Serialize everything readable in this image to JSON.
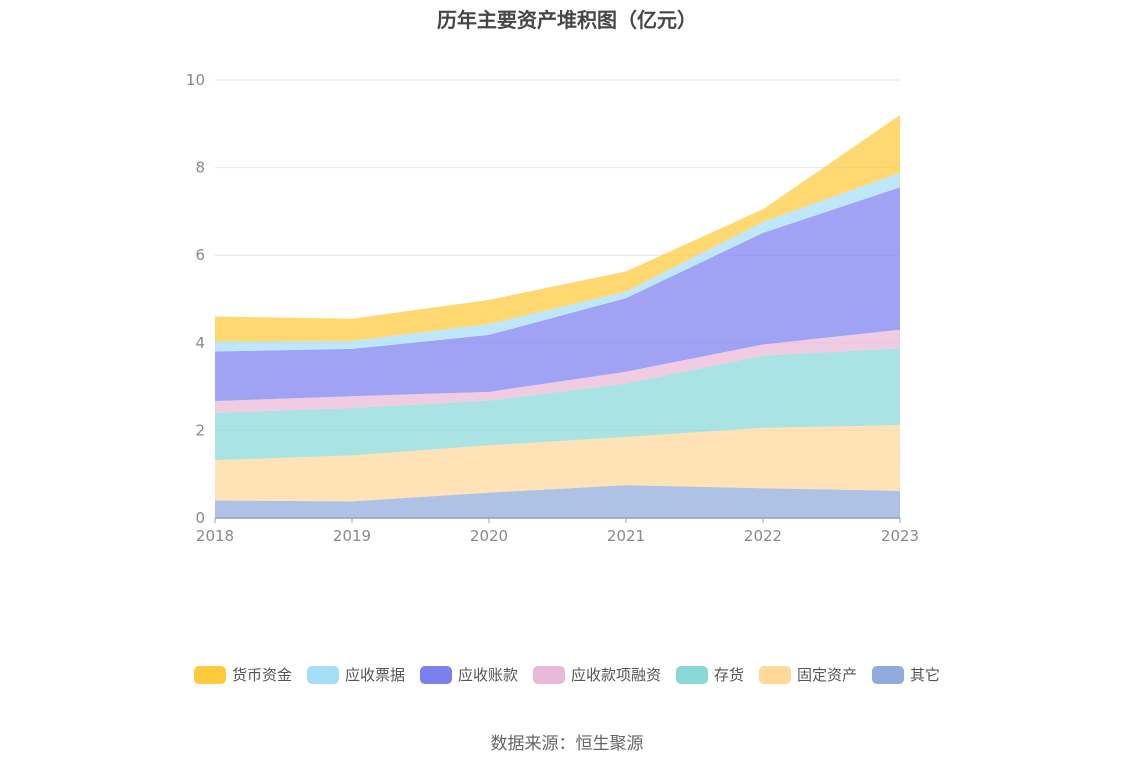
{
  "chart_data": {
    "type": "area",
    "stacked": true,
    "title": "历年主要资产堆积图（亿元）",
    "x": [
      "2018",
      "2019",
      "2020",
      "2021",
      "2022",
      "2023"
    ],
    "ylim": [
      0,
      10
    ],
    "yticks": [
      "0",
      "2",
      "4",
      "6",
      "8",
      "10"
    ],
    "grid": true,
    "legend_position": "bottom",
    "series": [
      {
        "name": "其它",
        "color": "#8faadc",
        "values": [
          0.4,
          0.38,
          0.58,
          0.75,
          0.68,
          0.62
        ]
      },
      {
        "name": "固定资产",
        "color": "#ffd89a",
        "values": [
          0.92,
          1.05,
          1.08,
          1.1,
          1.38,
          1.5
        ]
      },
      {
        "name": "存货",
        "color": "#88d8d8",
        "values": [
          1.08,
          1.08,
          1.02,
          1.22,
          1.65,
          1.75
        ]
      },
      {
        "name": "应收款项融资",
        "color": "#eab8d8",
        "values": [
          0.27,
          0.27,
          0.2,
          0.27,
          0.25,
          0.43
        ]
      },
      {
        "name": "应收账款",
        "color": "#7b7ff0",
        "values": [
          1.13,
          1.08,
          1.3,
          1.68,
          2.55,
          3.25
        ]
      },
      {
        "name": "应收票据",
        "color": "#a5dff7",
        "values": [
          0.23,
          0.18,
          0.25,
          0.15,
          0.25,
          0.33
        ]
      },
      {
        "name": "货币资金",
        "color": "#ffc93c",
        "values": [
          0.57,
          0.51,
          0.55,
          0.46,
          0.29,
          1.32
        ]
      }
    ],
    "legend_order": [
      "货币资金",
      "应收票据",
      "应收账款",
      "应收款项融资",
      "存货",
      "固定资产",
      "其它"
    ]
  },
  "source_text": "数据来源：恒生聚源"
}
